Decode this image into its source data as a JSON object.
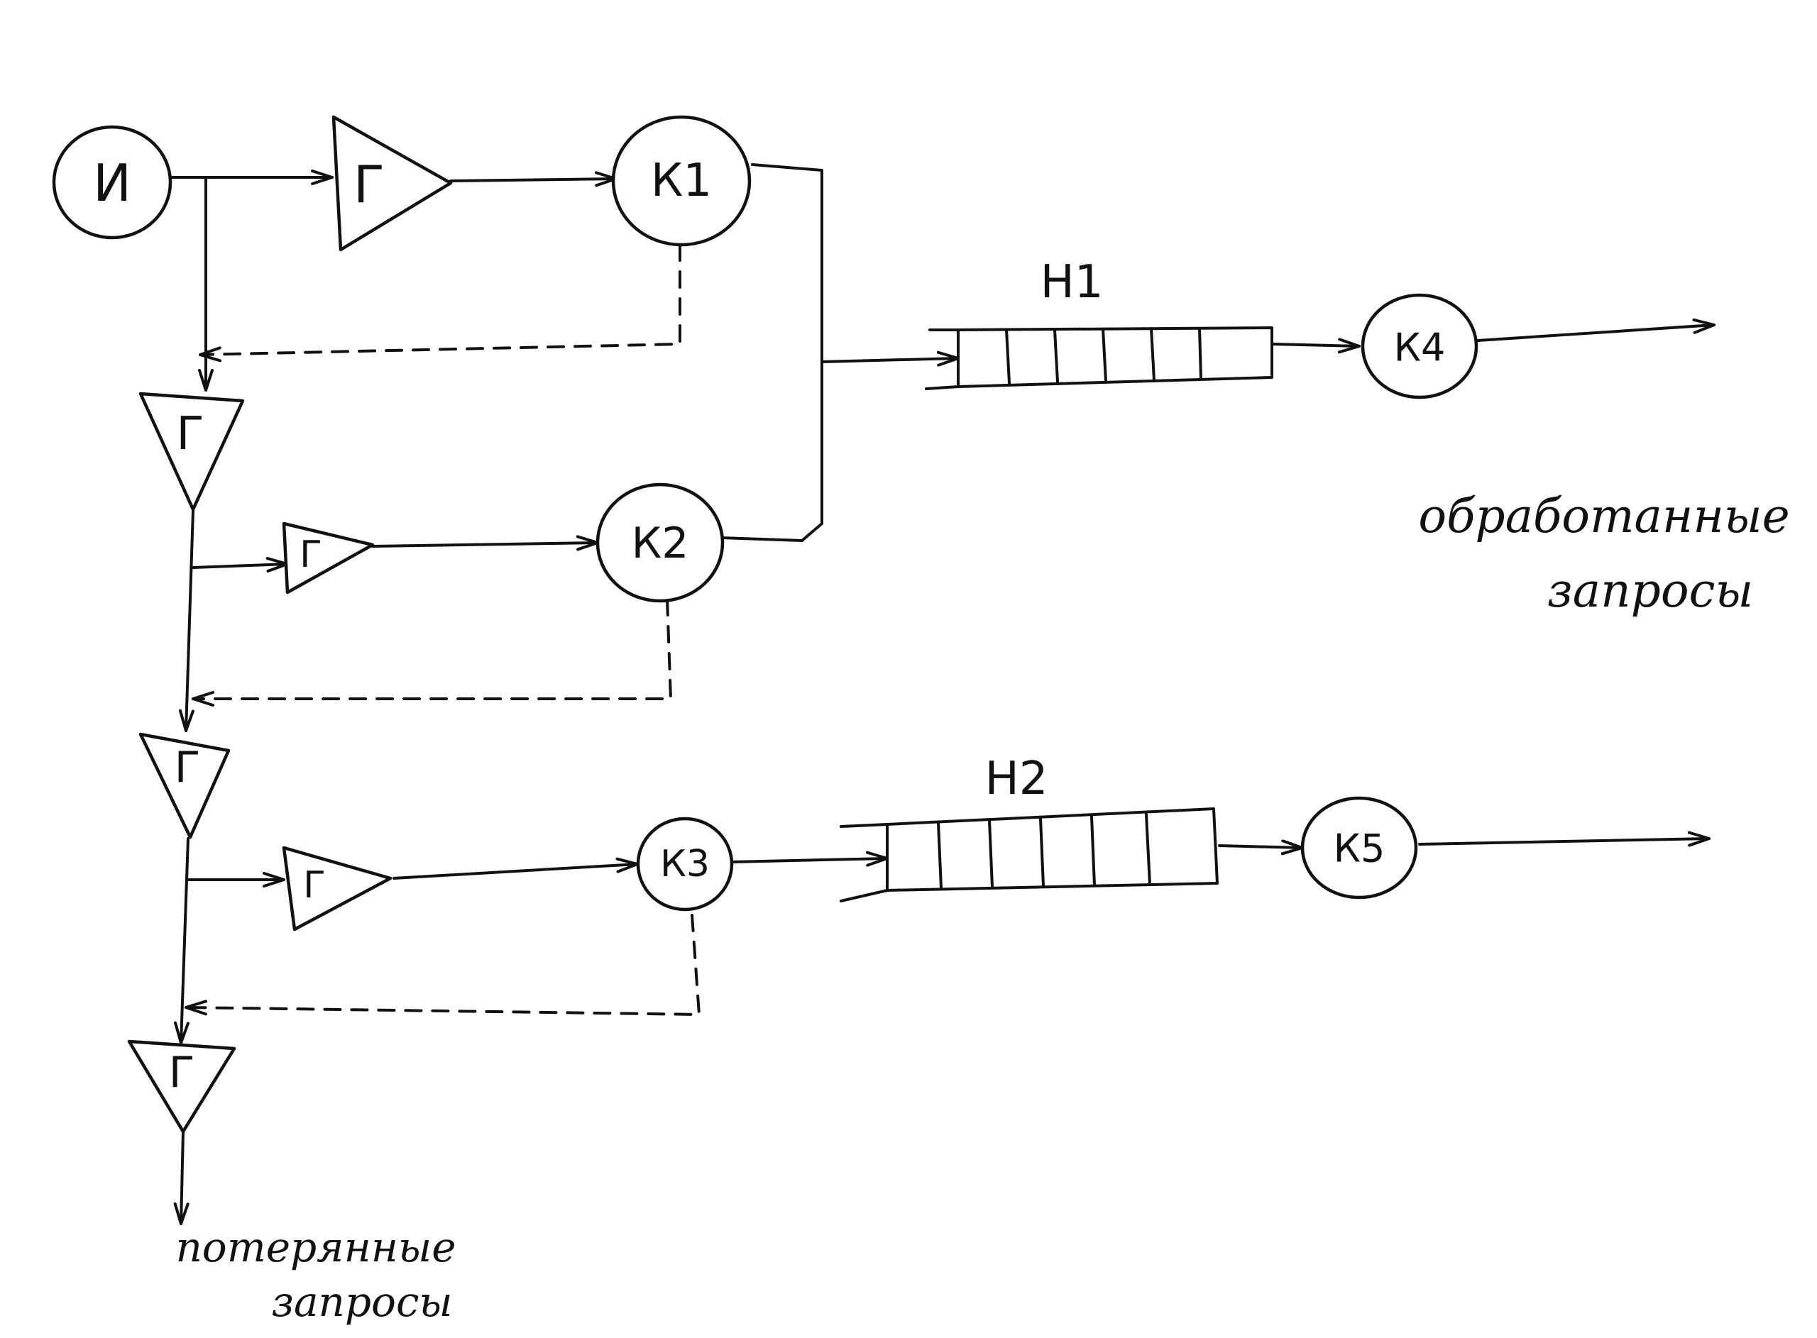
{
  "source": {
    "label": "И"
  },
  "generators": {
    "g1": "Г",
    "g2": "Г",
    "g3": "Г",
    "g4": "Г",
    "g5": "Г",
    "g6": "Г"
  },
  "channels": {
    "k1": "К1",
    "k2": "К2",
    "k3": "К3",
    "k4": "К4",
    "k5": "К5"
  },
  "queues": {
    "n1": "Н1",
    "n2": "Н2"
  },
  "notes": {
    "processed_line1": "обработанные",
    "processed_line2": "запросы",
    "lost_line1": "потерянные",
    "lost_line2": "запросы"
  },
  "colors": {
    "ink": "#111111",
    "paper": "#ffffff"
  }
}
